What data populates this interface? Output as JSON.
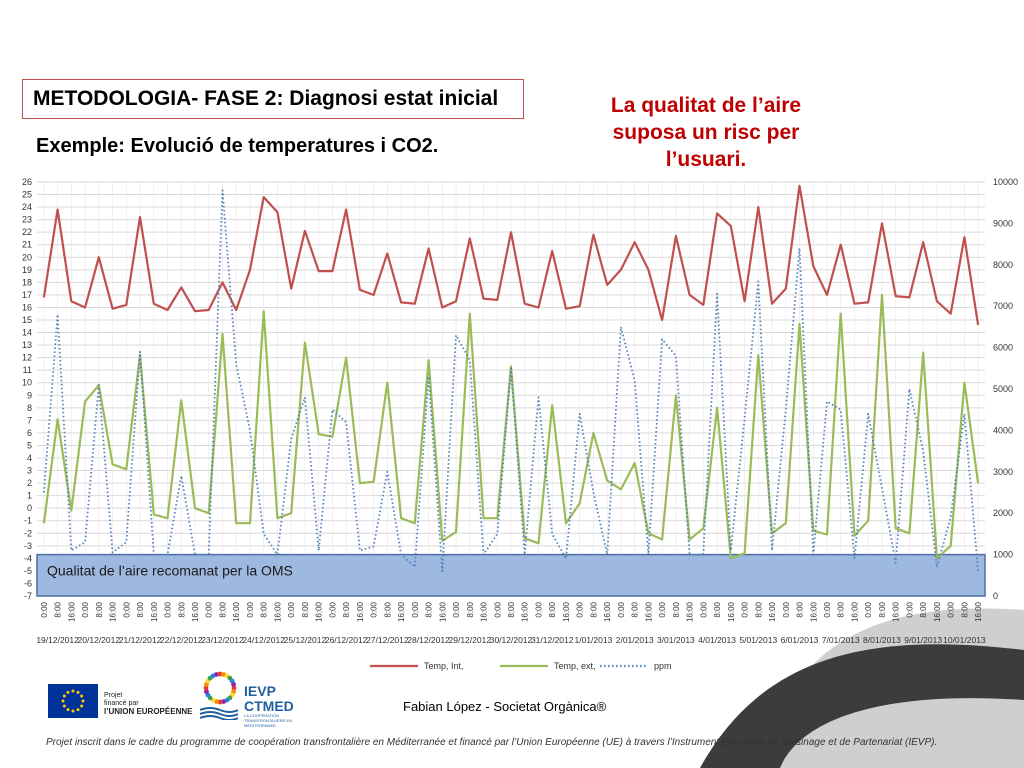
{
  "slide": {
    "title": "METODOLOGIA- FASE 2: Diagnosi estat inicial",
    "subtitle": "Exemple: Evolució de temperatures i CO2.",
    "warning": [
      "La qualitat de l’aire",
      "suposa un risc per",
      "l’usuari."
    ],
    "author": "Fabian López - Societat Orgànica®",
    "footer": "Projet inscrit dans le cadre du programme de coopération transfrontalière en Méditerranée et financé par l’Union Européenne (UE) à travers l’Instrument Européen de Voisinage et de Partenariat (IEVP).",
    "eu_logo_text": [
      "Projet",
      "financé par",
      "l’UNION EUROPÉENNE"
    ],
    "ievp_logo_text": [
      "IEVP",
      "CTMED"
    ],
    "ievp_subtext": "LA COOPÉRATION TRANSFRONTALIÈRE EN MÉDITERRANÉE",
    "colors": {
      "title_border": "#c0504d",
      "warning": "#c00000",
      "eu_blue": "#003399",
      "eu_star": "#ffcc00",
      "ievp_blue": "#1f5f9e"
    }
  },
  "chart_data": {
    "type": "line",
    "title": "",
    "left_axis": {
      "min": -7,
      "max": 26,
      "step": 1
    },
    "right_axis": {
      "min": 0,
      "max": 10000,
      "step": 1000
    },
    "grid": true,
    "legend_position": "bottom",
    "x_tick_labels": [
      "0:00",
      "8:00",
      "16:00"
    ],
    "date_labels": [
      "19/12/2012",
      "20/12/2012",
      "21/12/2012",
      "22/12/2012",
      "23/12/2012",
      "24/12/2012",
      "25/12/2012",
      "26/12/2012",
      "27/12/2012",
      "28/12/2012",
      "29/12/2012",
      "30/12/2012",
      "31/12/2012",
      "1/01/2013",
      "2/01/2013",
      "3/01/2013",
      "4/01/2013",
      "5/01/2013",
      "6/01/2013",
      "7/01/2013",
      "8/01/2013",
      "9/01/2013",
      "10/01/2013"
    ],
    "threshold_band": {
      "label": "Qualitat de l’aire recomanat per la OMS",
      "right_axis_max": 1000,
      "color": "#9db9e0",
      "border": "#4f6fa3"
    },
    "series": [
      {
        "name": "Temp, Int,",
        "axis": "left",
        "color": "#c0504d",
        "style": "solid",
        "daily": [
          [
            16.8,
            23.8,
            16.5
          ],
          [
            16.0,
            20.0,
            15.9
          ],
          [
            16.2,
            23.2,
            16.3
          ],
          [
            15.8,
            17.6,
            15.7
          ],
          [
            15.8,
            18.0,
            15.8
          ],
          [
            19.0,
            24.8,
            23.6
          ],
          [
            17.5,
            22.1,
            18.9
          ],
          [
            18.9,
            23.8,
            17.4
          ],
          [
            17.0,
            20.3,
            16.4
          ],
          [
            16.3,
            20.7,
            16.0
          ],
          [
            16.5,
            21.5,
            16.7
          ],
          [
            16.6,
            22.0,
            16.3
          ],
          [
            16.0,
            20.5,
            15.9
          ],
          [
            16.1,
            21.8,
            17.8
          ],
          [
            19.0,
            21.2,
            19.0
          ],
          [
            15.0,
            21.7,
            17.0
          ],
          [
            16.2,
            23.5,
            22.5
          ],
          [
            16.5,
            24.0,
            16.3
          ],
          [
            17.5,
            25.7,
            19.3
          ],
          [
            17.0,
            21.0,
            16.3
          ],
          [
            16.4,
            22.7,
            16.9
          ],
          [
            16.8,
            21.2,
            16.5
          ],
          [
            15.5,
            21.6,
            14.6
          ]
        ]
      },
      {
        "name": "Temp, ext,",
        "axis": "left",
        "color": "#9bbb59",
        "style": "solid",
        "daily": [
          [
            -1.2,
            7.1,
            -0.2
          ],
          [
            8.5,
            9.8,
            3.5
          ],
          [
            3.1,
            12.2,
            -0.5
          ],
          [
            -0.8,
            8.6,
            0.0
          ],
          [
            -0.4,
            13.9,
            -1.2
          ],
          [
            -1.2,
            15.7,
            -0.8
          ],
          [
            -0.4,
            13.2,
            5.9
          ],
          [
            5.7,
            12.0,
            2.0
          ],
          [
            2.1,
            10.0,
            -0.8
          ],
          [
            -1.2,
            11.8,
            -2.6
          ],
          [
            -1.9,
            15.5,
            -0.8
          ],
          [
            -0.8,
            11.3,
            -2.4
          ],
          [
            -2.8,
            8.2,
            -1.2
          ],
          [
            0.4,
            6.0,
            2.2
          ],
          [
            1.5,
            3.6,
            -2.0
          ],
          [
            -2.5,
            9.0,
            -2.5
          ],
          [
            -1.6,
            8.0,
            -4.0
          ],
          [
            -3.6,
            12.2,
            -2.0
          ],
          [
            -1.2,
            14.7,
            -1.8
          ],
          [
            -2.1,
            15.5,
            -2.2
          ],
          [
            -1.0,
            17.0,
            -1.6
          ],
          [
            -2.0,
            12.4,
            -4.0
          ],
          [
            -3.0,
            10.0,
            2.0
          ]
        ]
      },
      {
        "name": "ppm",
        "axis": "right",
        "color": "#4f81bd",
        "style": "dotted",
        "daily": [
          [
            2500,
            6800,
            1100
          ],
          [
            1300,
            5100,
            1050
          ],
          [
            1300,
            5900,
            1000
          ],
          [
            1000,
            2900,
            1000
          ],
          [
            1000,
            9800,
            5600
          ],
          [
            4000,
            1500,
            1000
          ],
          [
            3800,
            4800,
            1100
          ],
          [
            4500,
            4200,
            1100
          ],
          [
            1200,
            3000,
            1000
          ],
          [
            700,
            5300,
            600
          ],
          [
            6300,
            5700,
            1000
          ],
          [
            1500,
            5500,
            1000
          ],
          [
            4800,
            1500,
            900
          ],
          [
            4400,
            2500,
            1000
          ],
          [
            6500,
            5200,
            1000
          ],
          [
            6200,
            5800,
            1000
          ],
          [
            1000,
            7300,
            1100
          ],
          [
            4300,
            7600,
            1100
          ],
          [
            4500,
            8400,
            1000
          ],
          [
            4700,
            4500,
            900
          ],
          [
            4400,
            2600,
            800
          ],
          [
            5000,
            3500,
            700
          ],
          [
            1900,
            4400,
            600
          ]
        ]
      }
    ]
  }
}
